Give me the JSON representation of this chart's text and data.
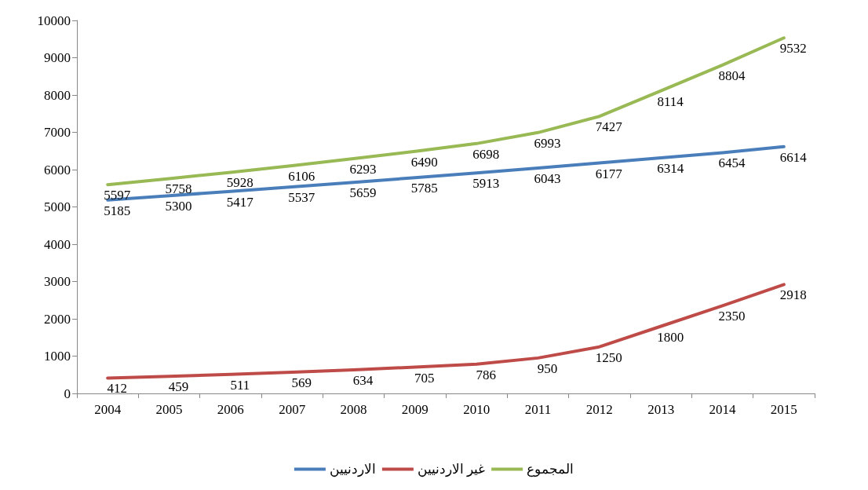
{
  "chart_data": {
    "type": "line",
    "categories": [
      "2004",
      "2005",
      "2006",
      "2007",
      "2008",
      "2009",
      "2010",
      "2011",
      "2012",
      "2013",
      "2014",
      "2015"
    ],
    "series": [
      {
        "name": "الاردنيين",
        "color": "#4a7ebb",
        "values": [
          5185,
          5300,
          5417,
          5537,
          5659,
          5785,
          5913,
          6043,
          6177,
          6314,
          6454,
          6614
        ]
      },
      {
        "name": "غير الاردنيين",
        "color": "#be4b48",
        "values": [
          412,
          459,
          511,
          569,
          634,
          705,
          786,
          950,
          1250,
          1800,
          2350,
          2918
        ]
      },
      {
        "name": "المجموع",
        "color": "#98b954",
        "values": [
          5597,
          5758,
          5928,
          6106,
          6293,
          6490,
          6698,
          6993,
          7427,
          8114,
          8804,
          9532
        ]
      }
    ],
    "ylim": [
      0,
      10000
    ],
    "yticks": [
      0,
      1000,
      2000,
      3000,
      4000,
      5000,
      6000,
      7000,
      8000,
      9000,
      10000
    ],
    "data_labels": true,
    "legend": "bottom",
    "grid": false,
    "marker": "none",
    "line_style": "solid"
  }
}
